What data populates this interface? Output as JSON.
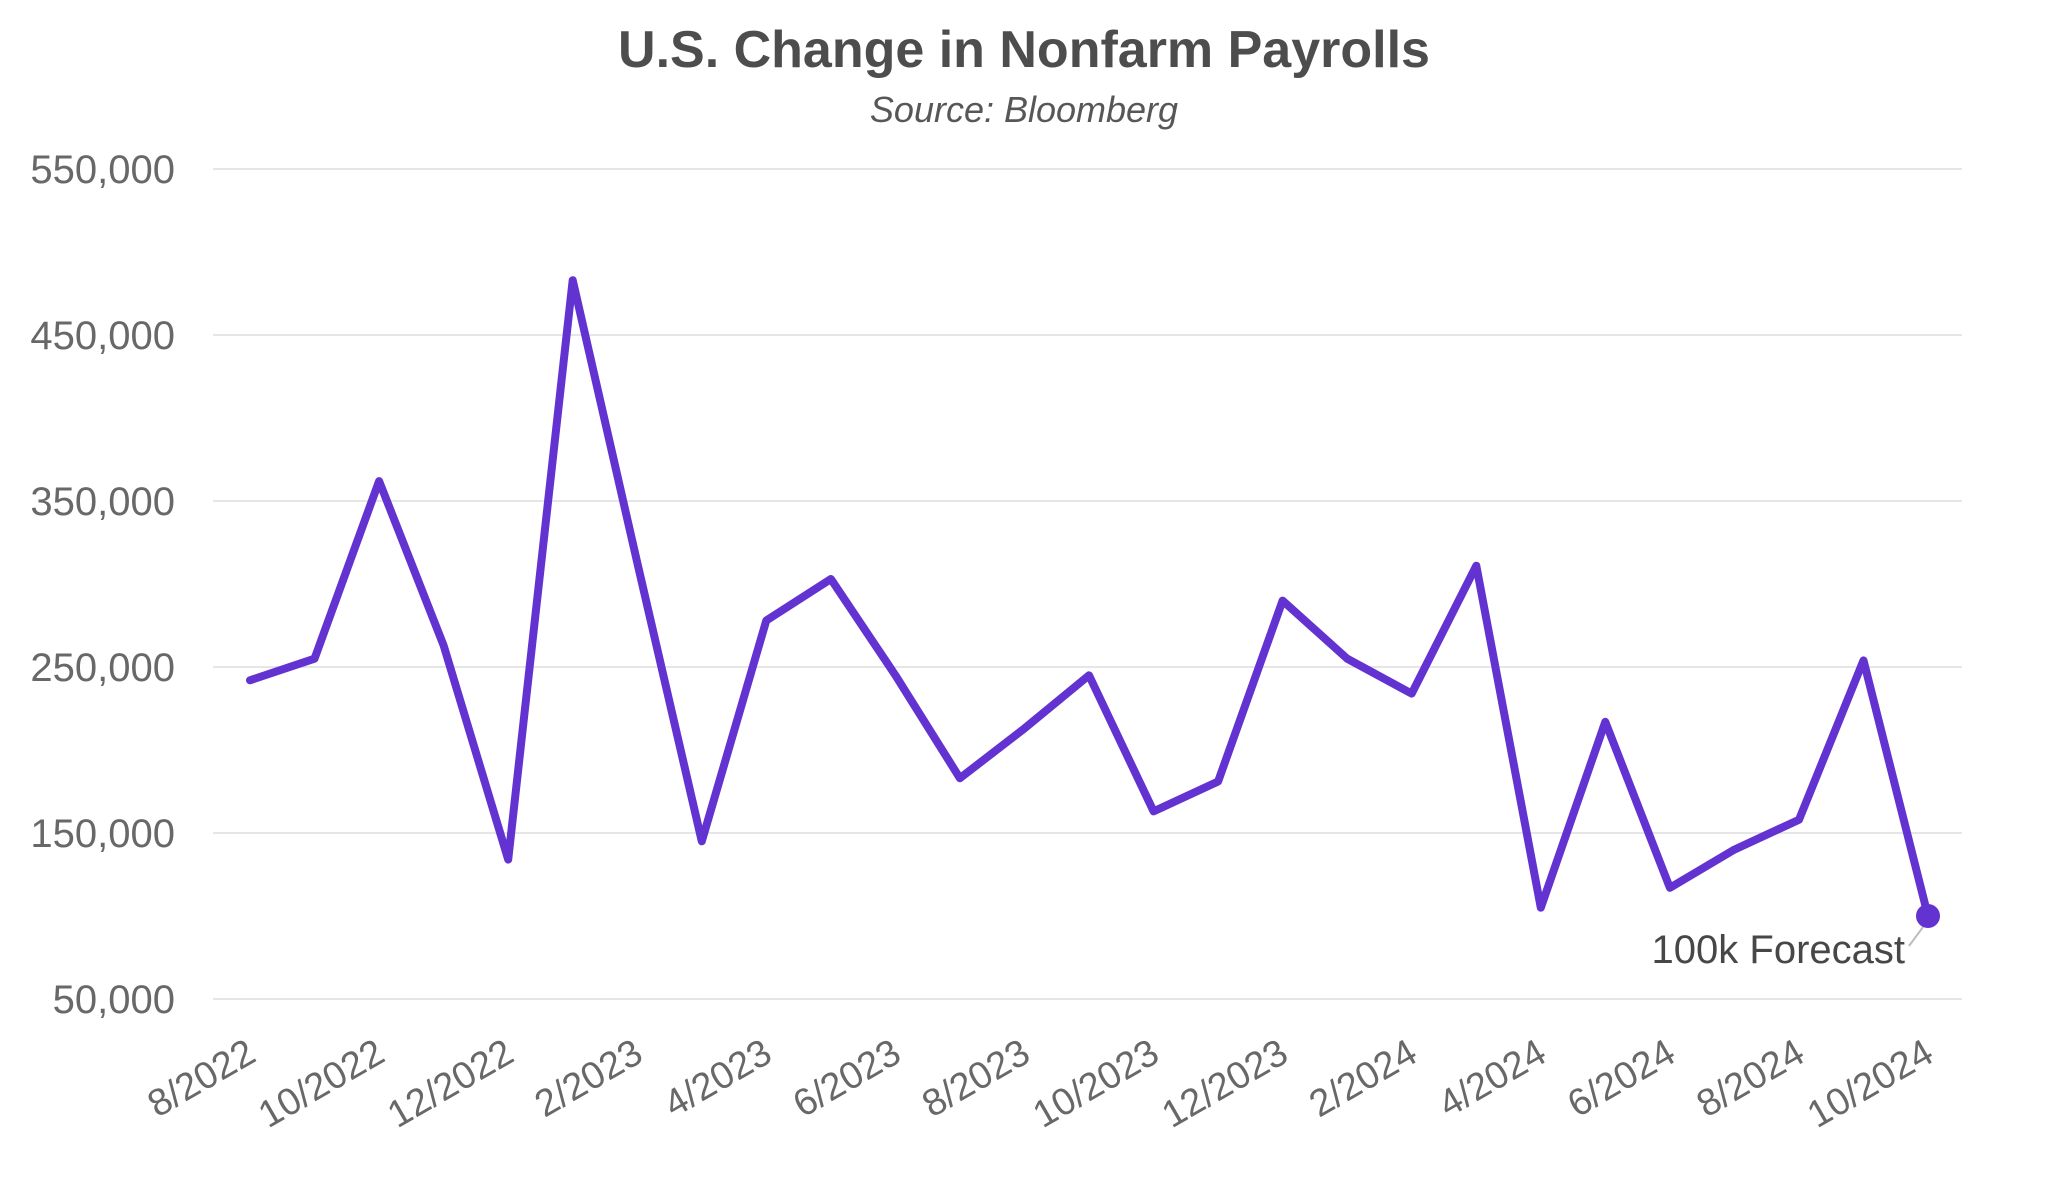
{
  "header": {
    "title": "U.S. Change in Nonfarm Payrolls",
    "subtitle": "Source: Bloomberg"
  },
  "colors": {
    "line": "#6333D1",
    "grid": "#e6e6e6",
    "title": "#4d4d4d",
    "subtitle": "#575757",
    "axis_labels": "#686868",
    "annotation": "#474747",
    "leader": "#bdbdbd",
    "background": "#ffffff"
  },
  "chart_data": {
    "type": "line",
    "title": "U.S. Change in Nonfarm Payrolls",
    "subtitle": "Source: Bloomberg",
    "x": [
      "8/2022",
      "9/2022",
      "10/2022",
      "11/2022",
      "12/2022",
      "1/2023",
      "2/2023",
      "3/2023",
      "4/2023",
      "5/2023",
      "6/2023",
      "7/2023",
      "8/2023",
      "9/2023",
      "10/2023",
      "11/2023",
      "12/2023",
      "1/2024",
      "2/2024",
      "3/2024",
      "4/2024",
      "5/2024",
      "6/2024",
      "7/2024",
      "8/2024",
      "9/2024",
      "10/2024"
    ],
    "values": [
      242000,
      255000,
      362000,
      263000,
      134000,
      483000,
      313000,
      145000,
      278000,
      303000,
      245000,
      183000,
      213000,
      245000,
      163000,
      181000,
      290000,
      255000,
      234000,
      311000,
      105000,
      217000,
      117000,
      140000,
      158000,
      254000,
      100000
    ],
    "x_tick_labels": [
      "8/2022",
      "10/2022",
      "12/2022",
      "2/2023",
      "4/2023",
      "6/2023",
      "8/2023",
      "10/2023",
      "12/2023",
      "2/2024",
      "4/2024",
      "6/2024",
      "8/2024",
      "10/2024"
    ],
    "y_ticks": [
      550000,
      450000,
      350000,
      250000,
      150000,
      50000
    ],
    "y_tick_labels": [
      "550,000",
      "450,000",
      "350,000",
      "250,000",
      "150,000",
      "50,000"
    ],
    "ylim": [
      50000,
      550000
    ],
    "grid": "horizontal-only",
    "legend": "none",
    "xlabel": "",
    "ylabel": "",
    "annotation": {
      "label": "100k Forecast",
      "applies_to": "10/2024",
      "value": 100000,
      "marker": "dot"
    }
  }
}
